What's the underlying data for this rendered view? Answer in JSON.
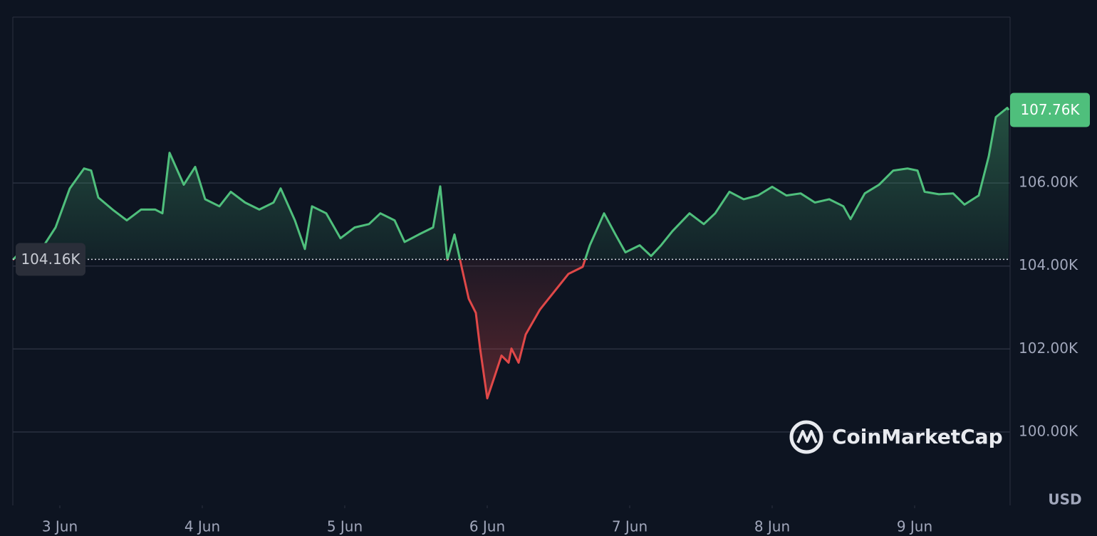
{
  "chart_data": {
    "type": "line",
    "currency": "USD",
    "watermark": "CoinMarketCap",
    "x": [
      2.67,
      2.77,
      2.87,
      2.97,
      3.07,
      3.17,
      3.22,
      3.27,
      3.37,
      3.47,
      3.57,
      3.67,
      3.72,
      3.77,
      3.87,
      3.95,
      4.02,
      4.12,
      4.2,
      4.3,
      4.4,
      4.5,
      4.55,
      4.65,
      4.72,
      4.77,
      4.87,
      4.97,
      5.07,
      5.17,
      5.25,
      5.35,
      5.42,
      5.52,
      5.62,
      5.67,
      5.72,
      5.77,
      5.82,
      5.87,
      5.92,
      5.95,
      6.0,
      6.05,
      6.1,
      6.15,
      6.17,
      6.22,
      6.27,
      6.37,
      6.47,
      6.57,
      6.67,
      6.72,
      6.82,
      6.9,
      6.97,
      7.07,
      7.15,
      7.22,
      7.3,
      7.42,
      7.52,
      7.6,
      7.7,
      7.8,
      7.9,
      8.0,
      8.1,
      8.2,
      8.3,
      8.4,
      8.5,
      8.55,
      8.65,
      8.75,
      8.85,
      8.95,
      9.02,
      9.07,
      9.17,
      9.27,
      9.35,
      9.45,
      9.52,
      9.57,
      9.65,
      9.66
    ],
    "series": [
      {
        "values": [
          104.15,
          104.5,
          104.4,
          104.93,
          105.87,
          106.35,
          106.3,
          105.65,
          105.36,
          105.1,
          105.36,
          105.36,
          105.27,
          106.73,
          105.96,
          106.39,
          105.61,
          105.44,
          105.79,
          105.53,
          105.36,
          105.53,
          105.87,
          105.1,
          104.41,
          105.44,
          105.27,
          104.67,
          104.93,
          105.01,
          105.27,
          105.1,
          104.58,
          104.76,
          104.93,
          105.92,
          104.15,
          104.76,
          103.98,
          103.21,
          102.87,
          102.01,
          100.81,
          101.32,
          101.84,
          101.67,
          102.01,
          101.67,
          102.35,
          102.95,
          103.38,
          103.81,
          103.98,
          104.5,
          105.27,
          104.76,
          104.33,
          104.5,
          104.24,
          104.5,
          104.84,
          105.27,
          105.01,
          105.27,
          105.79,
          105.61,
          105.7,
          105.91,
          105.7,
          105.75,
          105.53,
          105.61,
          105.44,
          105.13,
          105.75,
          105.96,
          106.3,
          106.35,
          106.3,
          105.79,
          105.73,
          105.75,
          105.48,
          105.7,
          106.64,
          107.59,
          107.81,
          107.76
        ],
        "color_up": "#4fbf7c",
        "color_down": "#e04848"
      }
    ],
    "reference": {
      "value": 104.16,
      "label": "104.16K"
    },
    "last": {
      "value": 107.76,
      "label": "107.76K"
    },
    "xlim": [
      2.67,
      9.67
    ],
    "xticks": [
      {
        "value": 3,
        "label": "3 Jun"
      },
      {
        "value": 4,
        "label": "4 Jun"
      },
      {
        "value": 5,
        "label": "5 Jun"
      },
      {
        "value": 6,
        "label": "6 Jun"
      },
      {
        "value": 7,
        "label": "7 Jun"
      },
      {
        "value": 8,
        "label": "8 Jun"
      },
      {
        "value": 9,
        "label": "9 Jun"
      }
    ],
    "ylim": [
      98.23,
      110
    ],
    "yticks": [
      {
        "value": 100,
        "label": "100.00K"
      },
      {
        "value": 102,
        "label": "102.00K"
      },
      {
        "value": 104,
        "label": "104.00K"
      },
      {
        "value": 106,
        "label": "106.00K"
      }
    ],
    "grid": true
  }
}
